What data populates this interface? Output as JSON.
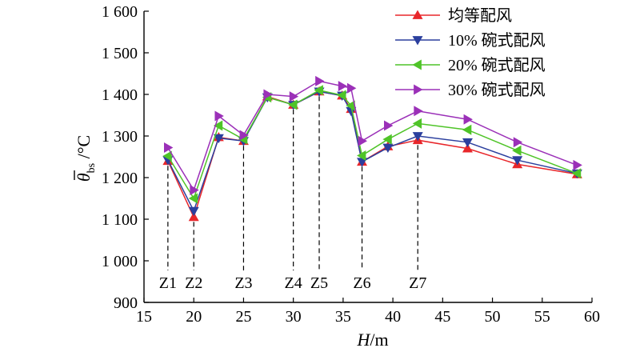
{
  "chart_data": {
    "type": "line",
    "xlabel": "H/m",
    "xlabel_italic": "H",
    "xlabel_rest": "/m",
    "ylabel": "θ̄bs /°C",
    "xlim": [
      15,
      60
    ],
    "ylim": [
      900,
      1600
    ],
    "xticks": [
      15,
      20,
      25,
      30,
      35,
      40,
      45,
      50,
      55,
      60
    ],
    "yticks": [
      900,
      1000,
      1100,
      1200,
      1300,
      1400,
      1500,
      1600
    ],
    "ytick_labels": [
      "900",
      "1 000",
      "1 100",
      "1 200",
      "1 300",
      "1 400",
      "1 500",
      "1 600"
    ],
    "legend_position": "top-right",
    "series": [
      {
        "name": "均等配风",
        "color": "#e8262a",
        "marker": "triangle-up",
        "x": [
          17.4,
          20.0,
          22.5,
          25.0,
          27.4,
          30.0,
          32.6,
          34.9,
          35.8,
          36.9,
          39.5,
          42.5,
          47.5,
          52.5,
          58.5
        ],
        "y": [
          1240,
          1105,
          1297,
          1288,
          1395,
          1375,
          1407,
          1397,
          1365,
          1238,
          1275,
          1290,
          1270,
          1232,
          1208
        ]
      },
      {
        "name": "10% 碗式配风",
        "color": "#2b3f9e",
        "marker": "triangle-down",
        "x": [
          17.4,
          20.0,
          22.5,
          25.0,
          27.4,
          30.0,
          32.6,
          34.9,
          35.8,
          36.9,
          39.5,
          42.5,
          47.5,
          52.5,
          58.5
        ],
        "y": [
          1242,
          1120,
          1295,
          1288,
          1393,
          1375,
          1407,
          1397,
          1360,
          1238,
          1272,
          1300,
          1285,
          1242,
          1210
        ]
      },
      {
        "name": "20% 碗式配风",
        "color": "#4fc428",
        "marker": "triangle-left",
        "x": [
          17.4,
          20.0,
          22.5,
          25.0,
          27.4,
          30.0,
          32.6,
          34.9,
          35.8,
          36.9,
          39.5,
          42.5,
          47.5,
          52.5,
          58.5
        ],
        "y": [
          1252,
          1150,
          1325,
          1292,
          1393,
          1375,
          1410,
          1398,
          1373,
          1253,
          1292,
          1330,
          1315,
          1265,
          1210
        ]
      },
      {
        "name": "30% 碗式配风",
        "color": "#9b30b8",
        "marker": "triangle-right",
        "x": [
          17.4,
          20.0,
          22.5,
          25.0,
          27.4,
          30.0,
          32.6,
          34.9,
          35.8,
          36.9,
          39.5,
          42.5,
          47.5,
          52.5,
          58.5
        ],
        "y": [
          1272,
          1170,
          1348,
          1302,
          1400,
          1395,
          1432,
          1420,
          1415,
          1288,
          1325,
          1360,
          1340,
          1285,
          1230
        ]
      }
    ],
    "zones": [
      {
        "label": "Z1",
        "x": 17.4,
        "y": 1240
      },
      {
        "label": "Z2",
        "x": 20.0,
        "y": 1105
      },
      {
        "label": "Z3",
        "x": 25.0,
        "y": 1288
      },
      {
        "label": "Z4",
        "x": 30.0,
        "y": 1375
      },
      {
        "label": "Z5",
        "x": 32.6,
        "y": 1407
      },
      {
        "label": "Z6",
        "x": 36.9,
        "y": 1238
      },
      {
        "label": "Z7",
        "x": 42.5,
        "y": 1290
      }
    ]
  }
}
